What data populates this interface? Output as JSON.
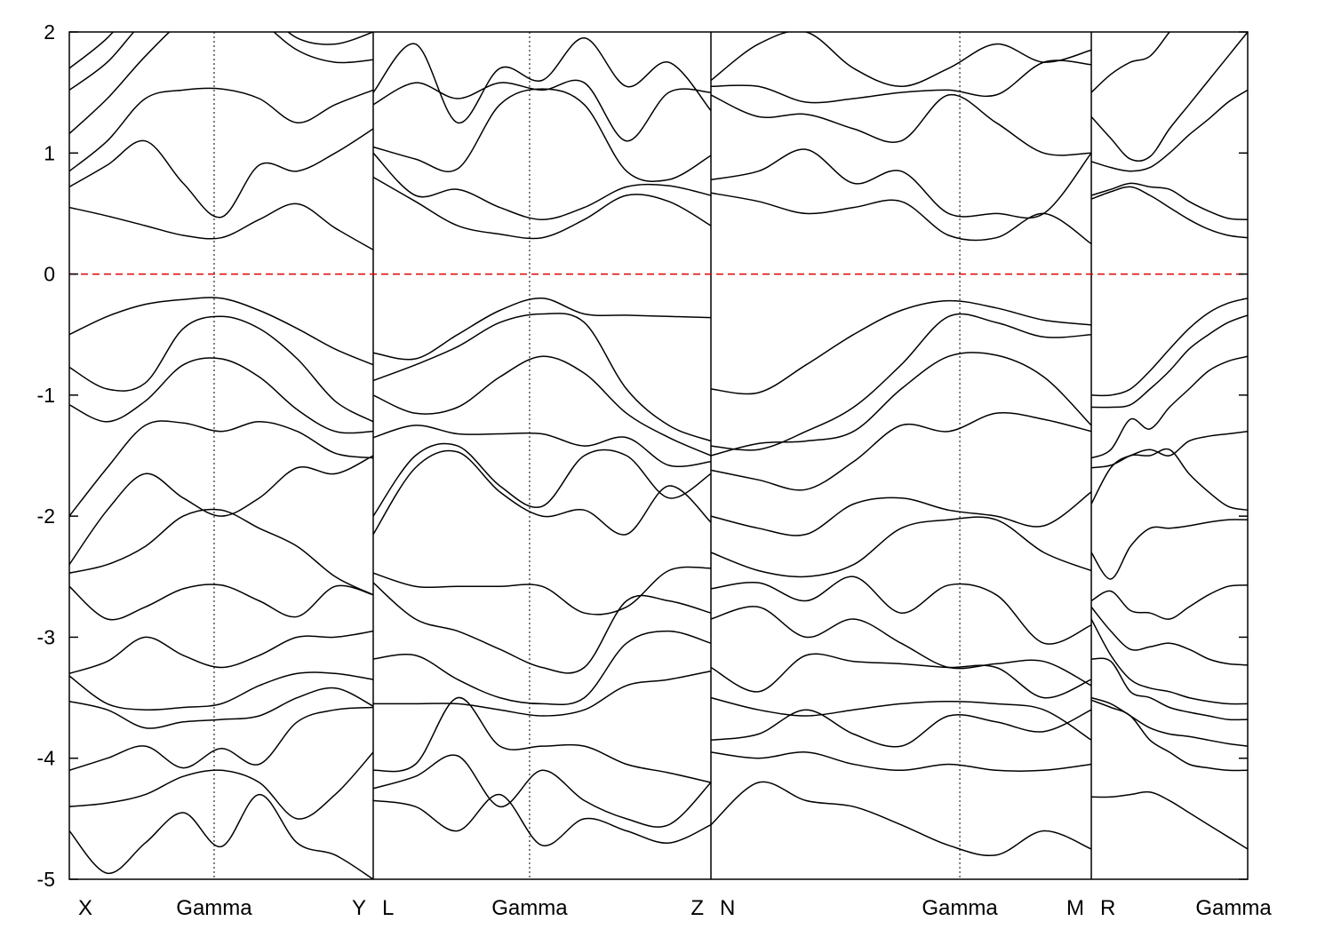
{
  "chart_data": {
    "type": "line",
    "title": "",
    "xlabel": "",
    "ylabel": "",
    "ylim": [
      -5,
      2
    ],
    "xlim": [
      0,
      1
    ],
    "yticks": [
      2,
      1,
      0,
      -1,
      -2,
      -3,
      -4,
      -5
    ],
    "ytick_labels": [
      "2",
      "1",
      "0",
      "-1",
      "-2",
      "-3",
      "-4",
      "-5"
    ],
    "fermi_level": 0,
    "fermi_color": "#e00000",
    "band_color": "#000000",
    "k_ticks": [
      {
        "label": "X",
        "k": 0.0
      },
      {
        "label": "Gamma",
        "k": 0.1229
      },
      {
        "label": "Y",
        "k": 0.2579
      },
      {
        "label": "L",
        "k": 0.2579
      },
      {
        "label": "Gamma",
        "k": 0.3906
      },
      {
        "label": "Z",
        "k": 0.5445
      },
      {
        "label": "N",
        "k": 0.5445
      },
      {
        "label": "Gamma",
        "k": 0.7557
      },
      {
        "label": "M",
        "k": 0.8673
      },
      {
        "label": "R",
        "k": 0.8673
      },
      {
        "label": "Gamma",
        "k": 1.0
      }
    ],
    "gamma_lines_k": [
      0.1229,
      0.3906,
      0.7557
    ],
    "panel_breaks_k": [
      0.2579,
      0.5445,
      0.8673
    ],
    "panels": [
      {
        "k_range": [
          0.0,
          0.2579
        ],
        "bands": [
          [
            0.55,
            0.48,
            0.4,
            0.32,
            0.3,
            0.45,
            0.58,
            0.38,
            0.2
          ],
          [
            0.72,
            0.9,
            1.1,
            0.75,
            0.47,
            0.9,
            0.85,
            1.0,
            1.2
          ],
          [
            0.85,
            1.1,
            1.45,
            1.52,
            1.53,
            1.45,
            1.25,
            1.4,
            1.52
          ],
          [
            1.16,
            1.45,
            1.8,
            2.1,
            2.3,
            2.1,
            1.85,
            1.75,
            1.77
          ],
          [
            1.52,
            1.75,
            2.1,
            2.3,
            2.3,
            2.2,
            1.95,
            1.9,
            2.0
          ],
          [
            1.7,
            1.95,
            2.3,
            2.5,
            2.5,
            2.4,
            2.2,
            2.1,
            2.2
          ],
          [
            -0.5,
            -0.35,
            -0.25,
            -0.21,
            -0.2,
            -0.3,
            -0.45,
            -0.62,
            -0.75
          ],
          [
            -0.77,
            -0.95,
            -0.9,
            -0.45,
            -0.35,
            -0.45,
            -0.7,
            -1.05,
            -1.22
          ],
          [
            -1.08,
            -1.22,
            -1.05,
            -0.75,
            -0.7,
            -0.85,
            -1.12,
            -1.3,
            -1.3
          ],
          [
            -2.0,
            -1.6,
            -1.25,
            -1.23,
            -1.3,
            -1.22,
            -1.3,
            -1.48,
            -1.52
          ],
          [
            -2.4,
            -1.95,
            -1.65,
            -1.85,
            -2.0,
            -1.85,
            -1.6,
            -1.65,
            -1.5
          ],
          [
            -2.47,
            -2.4,
            -2.25,
            -2.0,
            -1.95,
            -2.1,
            -2.25,
            -2.5,
            -2.65
          ],
          [
            -2.58,
            -2.85,
            -2.75,
            -2.6,
            -2.57,
            -2.7,
            -2.83,
            -2.58,
            -2.65
          ],
          [
            -3.3,
            -3.2,
            -3.0,
            -3.15,
            -3.25,
            -3.15,
            -3.0,
            -3.0,
            -2.95
          ],
          [
            -3.32,
            -3.55,
            -3.6,
            -3.58,
            -3.55,
            -3.4,
            -3.3,
            -3.3,
            -3.35
          ],
          [
            -3.53,
            -3.6,
            -3.75,
            -3.7,
            -3.68,
            -3.65,
            -3.5,
            -3.42,
            -3.57
          ],
          [
            -4.1,
            -4.0,
            -3.9,
            -4.08,
            -3.92,
            -4.05,
            -3.7,
            -3.6,
            -3.58
          ],
          [
            -4.4,
            -4.37,
            -4.3,
            -4.15,
            -4.1,
            -4.2,
            -4.5,
            -4.3,
            -3.95
          ],
          [
            -4.6,
            -4.95,
            -4.7,
            -4.45,
            -4.73,
            -4.3,
            -4.7,
            -4.8,
            -5.0
          ]
        ]
      },
      {
        "k_range": [
          0.2579,
          0.5445
        ],
        "bands": [
          [
            0.8,
            0.6,
            0.4,
            0.33,
            0.3,
            0.45,
            0.65,
            0.6,
            0.4
          ],
          [
            1.0,
            0.65,
            0.7,
            0.55,
            0.45,
            0.55,
            0.72,
            0.73,
            0.65
          ],
          [
            1.05,
            0.95,
            0.87,
            1.4,
            1.53,
            1.4,
            0.85,
            0.78,
            0.98
          ],
          [
            1.4,
            1.58,
            1.45,
            1.58,
            1.52,
            1.58,
            1.1,
            1.5,
            1.5
          ],
          [
            1.5,
            1.9,
            1.25,
            1.7,
            1.6,
            1.95,
            1.55,
            1.75,
            1.35
          ],
          [
            -0.65,
            -0.7,
            -0.5,
            -0.3,
            -0.2,
            -0.33,
            -0.34,
            -0.35,
            -0.36
          ],
          [
            -0.88,
            -0.75,
            -0.6,
            -0.4,
            -0.33,
            -0.4,
            -0.95,
            -1.25,
            -1.38
          ],
          [
            -1.0,
            -1.15,
            -1.1,
            -0.85,
            -0.68,
            -0.82,
            -1.15,
            -1.35,
            -1.5
          ],
          [
            -1.35,
            -1.25,
            -1.32,
            -1.32,
            -1.32,
            -1.42,
            -1.35,
            -1.58,
            -1.55
          ],
          [
            -2.0,
            -1.5,
            -1.42,
            -1.75,
            -1.92,
            -1.5,
            -1.5,
            -1.85,
            -1.65
          ],
          [
            -2.15,
            -1.6,
            -1.47,
            -1.8,
            -2.0,
            -1.95,
            -2.15,
            -1.75,
            -2.05
          ],
          [
            -2.47,
            -2.58,
            -2.58,
            -2.58,
            -2.58,
            -2.8,
            -2.75,
            -2.45,
            -2.43
          ],
          [
            -2.55,
            -2.85,
            -2.95,
            -3.1,
            -3.25,
            -3.25,
            -2.7,
            -2.7,
            -2.8
          ],
          [
            -3.18,
            -3.15,
            -3.35,
            -3.5,
            -3.55,
            -3.5,
            -3.05,
            -2.95,
            -3.05
          ],
          [
            -3.55,
            -3.55,
            -3.55,
            -3.6,
            -3.65,
            -3.6,
            -3.4,
            -3.35,
            -3.28
          ],
          [
            -4.1,
            -4.05,
            -3.5,
            -3.9,
            -3.9,
            -3.9,
            -4.05,
            -4.12,
            -4.2
          ],
          [
            -4.25,
            -4.15,
            -3.98,
            -4.4,
            -4.1,
            -4.35,
            -4.5,
            -4.55,
            -4.2
          ],
          [
            -4.35,
            -4.4,
            -4.6,
            -4.3,
            -4.72,
            -4.5,
            -4.6,
            -4.7,
            -4.55
          ]
        ]
      },
      {
        "k_range": [
          0.5445,
          0.8673
        ],
        "bands": [
          [
            0.67,
            0.6,
            0.5,
            0.55,
            0.6,
            0.32,
            0.3,
            0.5,
            0.25
          ],
          [
            0.78,
            0.85,
            1.03,
            0.75,
            0.85,
            0.5,
            0.5,
            0.5,
            1.0
          ],
          [
            1.48,
            1.3,
            1.32,
            1.2,
            1.1,
            1.48,
            1.25,
            1.0,
            1.0
          ],
          [
            1.55,
            1.55,
            1.42,
            1.45,
            1.5,
            1.52,
            1.48,
            1.75,
            1.73
          ],
          [
            1.6,
            1.9,
            2.0,
            1.7,
            1.55,
            1.7,
            1.9,
            1.75,
            1.85
          ],
          [
            -0.95,
            -0.98,
            -0.75,
            -0.5,
            -0.3,
            -0.22,
            -0.28,
            -0.38,
            -0.42
          ],
          [
            -1.42,
            -1.45,
            -1.3,
            -1.1,
            -0.75,
            -0.35,
            -0.4,
            -0.52,
            -0.5
          ],
          [
            -1.5,
            -1.4,
            -1.38,
            -1.3,
            -0.95,
            -0.68,
            -0.67,
            -0.85,
            -1.25
          ],
          [
            -1.62,
            -1.7,
            -1.78,
            -1.55,
            -1.25,
            -1.3,
            -1.15,
            -1.2,
            -1.3
          ],
          [
            -2.0,
            -2.1,
            -2.15,
            -1.9,
            -1.85,
            -1.95,
            -2.0,
            -2.08,
            -1.8
          ],
          [
            -2.3,
            -2.45,
            -2.5,
            -2.4,
            -2.1,
            -2.03,
            -2.03,
            -2.3,
            -2.45
          ],
          [
            -2.6,
            -2.55,
            -2.7,
            -2.5,
            -2.8,
            -2.57,
            -2.65,
            -3.05,
            -2.9
          ],
          [
            -2.85,
            -2.75,
            -3.0,
            -2.85,
            -3.05,
            -3.25,
            -3.22,
            -3.2,
            -3.4
          ],
          [
            -3.25,
            -3.45,
            -3.15,
            -3.2,
            -3.22,
            -3.25,
            -3.25,
            -3.5,
            -3.35
          ],
          [
            -3.5,
            -3.6,
            -3.65,
            -3.6,
            -3.55,
            -3.53,
            -3.55,
            -3.6,
            -3.85
          ],
          [
            -3.85,
            -3.8,
            -3.6,
            -3.8,
            -3.9,
            -3.65,
            -3.7,
            -3.78,
            -3.6
          ],
          [
            -3.95,
            -4.0,
            -3.95,
            -4.05,
            -4.1,
            -4.05,
            -4.1,
            -4.1,
            -4.05
          ],
          [
            -4.55,
            -4.2,
            -4.35,
            -4.4,
            -4.55,
            -4.72,
            -4.8,
            -4.6,
            -4.75
          ]
        ]
      },
      {
        "k_range": [
          0.8673,
          1.0
        ],
        "bands": [
          [
            0.62,
            0.68,
            0.72,
            0.65,
            0.55,
            0.45,
            0.37,
            0.32,
            0.3
          ],
          [
            0.65,
            0.7,
            0.75,
            0.72,
            0.7,
            0.6,
            0.52,
            0.46,
            0.45
          ],
          [
            0.93,
            0.88,
            0.85,
            0.88,
            1.0,
            1.15,
            1.28,
            1.42,
            1.52
          ],
          [
            1.3,
            1.12,
            0.95,
            0.97,
            1.2,
            1.4,
            1.6,
            1.8,
            2.0
          ],
          [
            1.5,
            1.65,
            1.75,
            1.8,
            2.0,
            2.2,
            2.3,
            2.4,
            2.5
          ],
          [
            -1.0,
            -1.0,
            -0.95,
            -0.8,
            -0.62,
            -0.45,
            -0.32,
            -0.24,
            -0.2
          ],
          [
            -1.1,
            -1.1,
            -1.08,
            -0.95,
            -0.8,
            -0.62,
            -0.5,
            -0.4,
            -0.34
          ],
          [
            -1.52,
            -1.45,
            -1.2,
            -1.28,
            -1.1,
            -0.95,
            -0.8,
            -0.72,
            -0.68
          ],
          [
            -1.6,
            -1.58,
            -1.5,
            -1.45,
            -1.5,
            -1.38,
            -1.34,
            -1.32,
            -1.3
          ],
          [
            -1.9,
            -1.6,
            -1.5,
            -1.5,
            -1.45,
            -1.65,
            -1.8,
            -1.92,
            -1.95
          ],
          [
            -2.3,
            -2.52,
            -2.25,
            -2.1,
            -2.1,
            -2.08,
            -2.05,
            -2.03,
            -2.03
          ],
          [
            -2.7,
            -2.62,
            -2.78,
            -2.8,
            -2.85,
            -2.75,
            -2.65,
            -2.58,
            -2.57
          ],
          [
            -2.75,
            -2.95,
            -3.1,
            -3.08,
            -3.05,
            -3.1,
            -3.18,
            -3.22,
            -3.23
          ],
          [
            -2.85,
            -3.15,
            -3.35,
            -3.42,
            -3.45,
            -3.5,
            -3.53,
            -3.55,
            -3.55
          ],
          [
            -3.18,
            -3.2,
            -3.45,
            -3.5,
            -3.58,
            -3.62,
            -3.65,
            -3.68,
            -3.68
          ],
          [
            -3.5,
            -3.55,
            -3.65,
            -3.75,
            -3.8,
            -3.82,
            -3.85,
            -3.88,
            -3.9
          ],
          [
            -3.52,
            -3.58,
            -3.65,
            -3.85,
            -3.95,
            -4.05,
            -4.08,
            -4.1,
            -4.1
          ],
          [
            -4.32,
            -4.32,
            -4.3,
            -4.28,
            -4.35,
            -4.45,
            -4.55,
            -4.65,
            -4.75
          ]
        ]
      }
    ]
  }
}
